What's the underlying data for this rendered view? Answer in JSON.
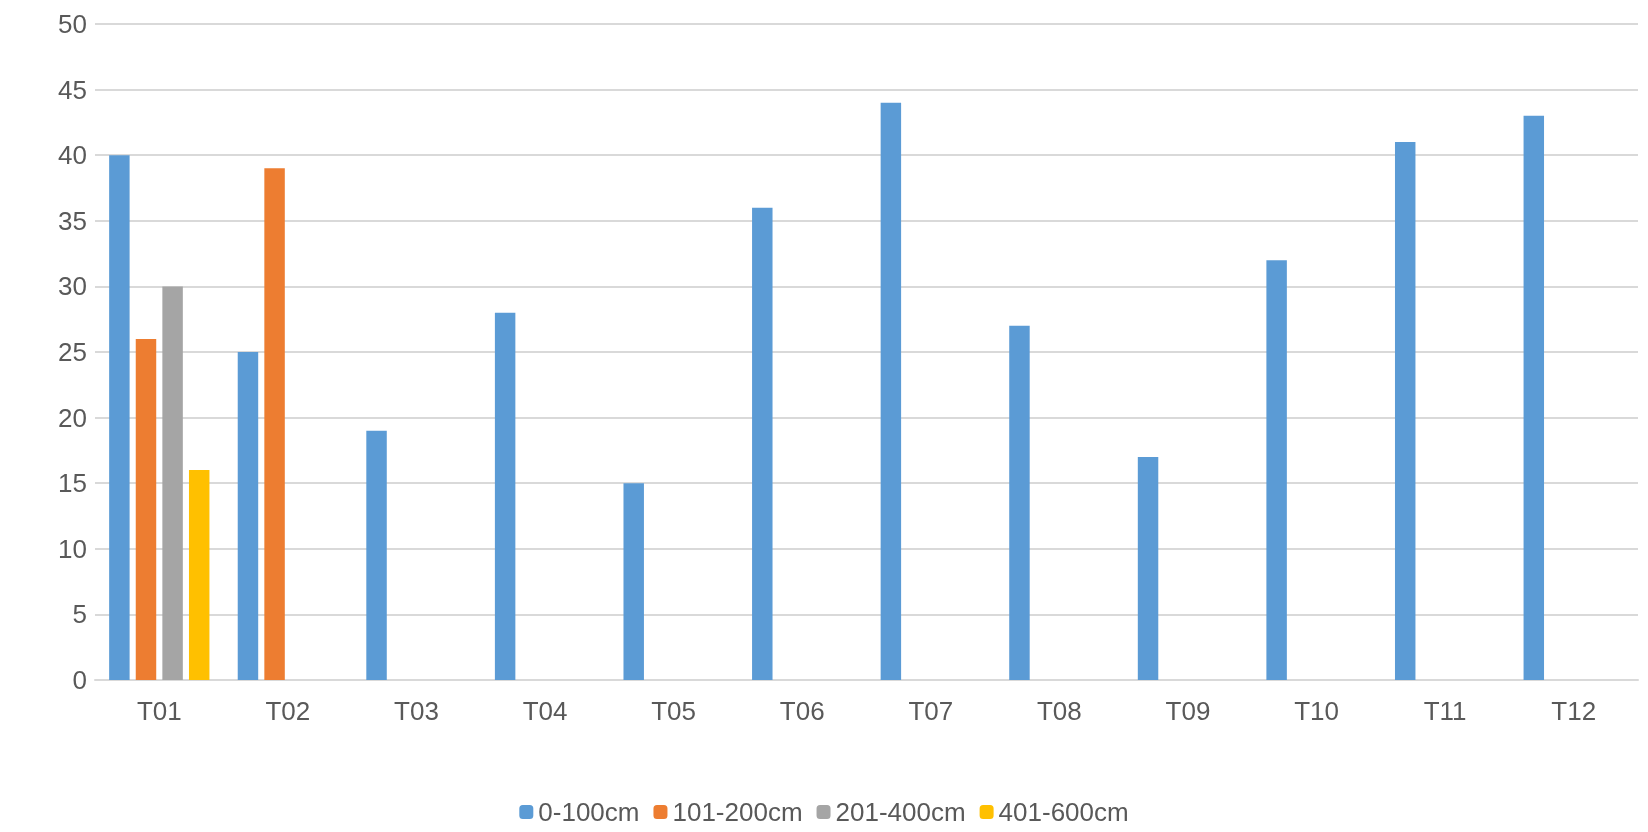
{
  "chart_data": {
    "type": "bar",
    "categories": [
      "T01",
      "T02",
      "T03",
      "T04",
      "T05",
      "T06",
      "T07",
      "T08",
      "T09",
      "T10",
      "T11",
      "T12"
    ],
    "series": [
      {
        "name": "0-100cm",
        "color": "#5b9bd5",
        "values": [
          40,
          25,
          19,
          28,
          15,
          36,
          44,
          27,
          17,
          32,
          41,
          43
        ]
      },
      {
        "name": "101-200cm",
        "color": "#ed7d31",
        "values": [
          26,
          39,
          null,
          null,
          null,
          null,
          null,
          null,
          null,
          null,
          null,
          null
        ]
      },
      {
        "name": "201-400cm",
        "color": "#a5a5a5",
        "values": [
          30,
          null,
          null,
          null,
          null,
          null,
          null,
          null,
          null,
          null,
          null,
          null
        ]
      },
      {
        "name": "401-600cm",
        "color": "#ffc000",
        "values": [
          16,
          null,
          null,
          null,
          null,
          null,
          null,
          null,
          null,
          null,
          null,
          null
        ]
      }
    ],
    "ylim": [
      0,
      50
    ],
    "yticks": [
      0,
      5,
      10,
      15,
      20,
      25,
      30,
      35,
      40,
      45,
      50
    ],
    "grid": "y",
    "legend": "bottom"
  }
}
